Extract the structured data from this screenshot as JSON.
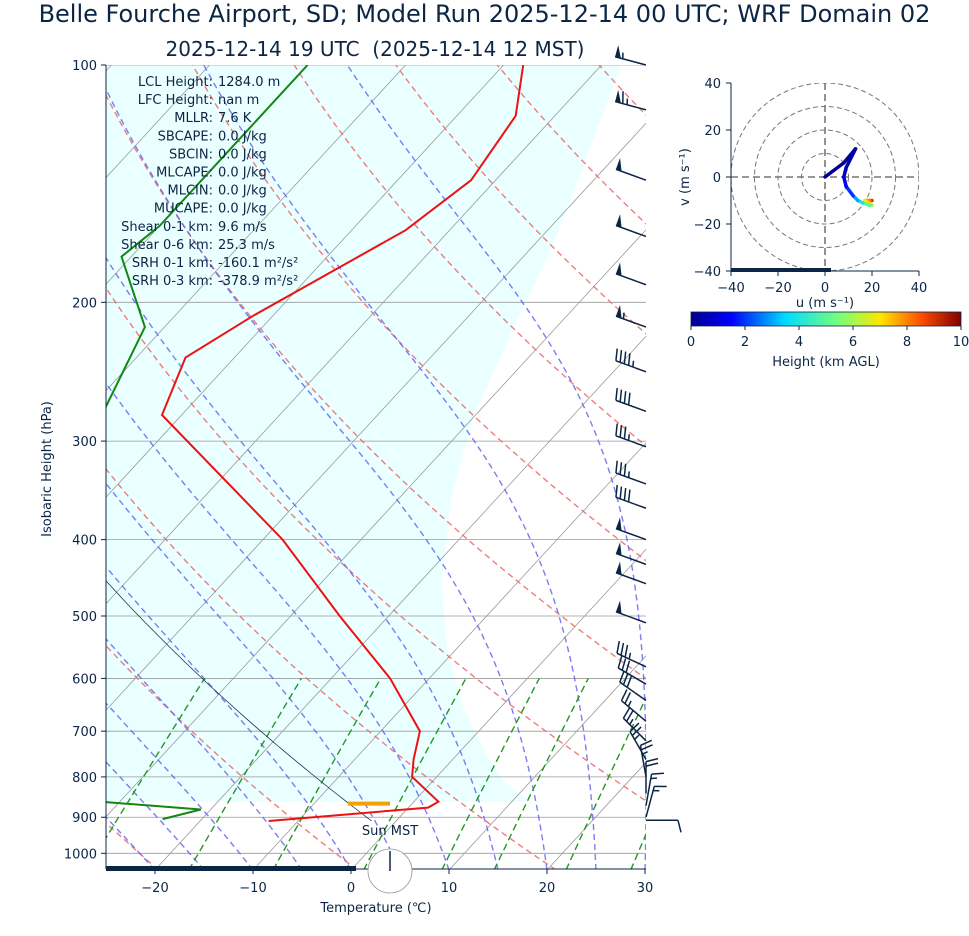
{
  "title": "Belle Fourche Airport, SD; Model Run 2025-12-14 00 UTC; WRF Domain 02",
  "subtitle": "2025-12-14 19 UTC  (2025-12-14 12 MST)",
  "clock_label": "Sun MST",
  "indices": [
    {
      "label": "LCL Height:",
      "value": "1284.0 m"
    },
    {
      "label": "LFC Height:",
      "value": "nan m"
    },
    {
      "label": "MLLR:",
      "value": "7.6 K"
    },
    {
      "label": "SBCAPE:",
      "value": "0.0 J/kg"
    },
    {
      "label": "SBCIN:",
      "value": "0.0 J/kg"
    },
    {
      "label": "MLCAPE:",
      "value": "0.0 J/kg"
    },
    {
      "label": "MLCIN:",
      "value": "0.0 J/kg"
    },
    {
      "label": "MUCAPE:",
      "value": "0.0 J/kg"
    },
    {
      "label": "Shear 0-1 km:",
      "value": "9.6 m/s"
    },
    {
      "label": "Shear 0-6 km:",
      "value": "25.3 m/s"
    },
    {
      "label": "SRH 0-1 km:",
      "value": "-160.1 m²/s²"
    },
    {
      "label": "SRH 0-3 km:",
      "value": "-378.9 m²/s²"
    }
  ],
  "colors": {
    "temperature": "#ee1111",
    "dewpoint": "#118811",
    "dry_adiabat": "#ee6666",
    "moist_adiabat": "#6666ee",
    "mixing_ratio": "#229922",
    "cloud_shade": "#eaffff",
    "text": "#0b2545",
    "lcl_marker": "#f4a000"
  },
  "chart_data": [
    {
      "type": "line",
      "name": "skew-T log-p sounding",
      "xlabel": "Temperature (℃)",
      "ylabel": "Isobaric Height (hPa)",
      "xlim": [
        -25,
        30
      ],
      "ylim": [
        1050,
        100
      ],
      "y_scale": "log",
      "xticks": [
        -20,
        -10,
        0,
        10,
        20,
        30
      ],
      "yticks": [
        100,
        200,
        300,
        400,
        500,
        600,
        700,
        800,
        900,
        1000
      ],
      "grid": true,
      "lcl_pressure_hpa": 865,
      "series": [
        {
          "key": "temperature",
          "points": [
            [
              100,
              -58
            ],
            [
              116,
              -54
            ],
            [
              140,
              -52.5
            ],
            [
              162,
              -54.5
            ],
            [
              208,
              -62
            ],
            [
              235,
              -65
            ],
            [
              278,
              -62
            ],
            [
              400,
              -38
            ],
            [
              500,
              -25
            ],
            [
              600,
              -14
            ],
            [
              700,
              -6
            ],
            [
              760,
              -4
            ],
            [
              800,
              -2.5
            ],
            [
              860,
              2.5
            ],
            [
              875,
              2
            ],
            [
              910,
              -13
            ]
          ]
        },
        {
          "key": "dewpoint",
          "points": [
            [
              100,
              -80
            ],
            [
              160,
              -80
            ],
            [
              175,
              -81
            ],
            [
              215,
              -72
            ],
            [
              300,
              -67
            ],
            [
              350,
              -66
            ],
            [
              430,
              -57
            ],
            [
              470,
              -53
            ],
            [
              600,
              -48
            ],
            [
              700,
              -44
            ],
            [
              770,
              -38
            ],
            [
              800,
              -35
            ],
            [
              860,
              -32
            ],
            [
              880,
              -21
            ],
            [
              905,
              -24
            ]
          ]
        }
      ],
      "wind_barbs": [
        {
          "p": 100,
          "speed_kt": 55,
          "dir_deg": 285
        },
        {
          "p": 114,
          "speed_kt": 65,
          "dir_deg": 285
        },
        {
          "p": 140,
          "speed_kt": 50,
          "dir_deg": 290
        },
        {
          "p": 165,
          "speed_kt": 50,
          "dir_deg": 290
        },
        {
          "p": 190,
          "speed_kt": 50,
          "dir_deg": 290
        },
        {
          "p": 215,
          "speed_kt": 55,
          "dir_deg": 290
        },
        {
          "p": 245,
          "speed_kt": 45,
          "dir_deg": 290
        },
        {
          "p": 275,
          "speed_kt": 40,
          "dir_deg": 290
        },
        {
          "p": 305,
          "speed_kt": 35,
          "dir_deg": 290
        },
        {
          "p": 340,
          "speed_kt": 35,
          "dir_deg": 290
        },
        {
          "p": 365,
          "speed_kt": 40,
          "dir_deg": 290
        },
        {
          "p": 400,
          "speed_kt": 50,
          "dir_deg": 290
        },
        {
          "p": 430,
          "speed_kt": 50,
          "dir_deg": 290
        },
        {
          "p": 455,
          "speed_kt": 50,
          "dir_deg": 290
        },
        {
          "p": 510,
          "speed_kt": 50,
          "dir_deg": 290
        },
        {
          "p": 580,
          "speed_kt": 35,
          "dir_deg": 295
        },
        {
          "p": 610,
          "speed_kt": 30,
          "dir_deg": 300
        },
        {
          "p": 640,
          "speed_kt": 30,
          "dir_deg": 305
        },
        {
          "p": 680,
          "speed_kt": 25,
          "dir_deg": 310
        },
        {
          "p": 720,
          "speed_kt": 25,
          "dir_deg": 315
        },
        {
          "p": 760,
          "speed_kt": 25,
          "dir_deg": 330
        },
        {
          "p": 800,
          "speed_kt": 25,
          "dir_deg": 350
        },
        {
          "p": 840,
          "speed_kt": 20,
          "dir_deg": 0
        },
        {
          "p": 870,
          "speed_kt": 15,
          "dir_deg": 10
        },
        {
          "p": 900,
          "speed_kt": 15,
          "dir_deg": 15
        },
        {
          "p": 908,
          "speed_kt": 10,
          "dir_deg": 90
        }
      ]
    },
    {
      "type": "line",
      "name": "hodograph",
      "xlabel": "u (m s$^{-1}$)",
      "xlabel_unit_display": "u (m s⁻¹)",
      "ylabel_display": "v (m s⁻¹)",
      "xlim": [
        -40,
        40
      ],
      "ylim": [
        -40,
        40
      ],
      "ticks": [
        -40,
        -20,
        0,
        20,
        40
      ],
      "rings": [
        10,
        20,
        30,
        40
      ],
      "points": [
        {
          "u": 20,
          "v": -10,
          "h": 9.5
        },
        {
          "u": 19,
          "v": -10,
          "h": 8.5
        },
        {
          "u": 17,
          "v": -10,
          "h": 7.5
        },
        {
          "u": 20,
          "v": -12,
          "h": 6.5
        },
        {
          "u": 19,
          "v": -12,
          "h": 5.5
        },
        {
          "u": 16,
          "v": -11,
          "h": 4.5
        },
        {
          "u": 14,
          "v": -10,
          "h": 3.5
        },
        {
          "u": 12,
          "v": -8,
          "h": 2.5
        },
        {
          "u": 9,
          "v": -4,
          "h": 1.5
        },
        {
          "u": 8,
          "v": 0,
          "h": 1.0
        },
        {
          "u": 9,
          "v": 4,
          "h": 0.6
        },
        {
          "u": 13,
          "v": 12,
          "h": 0.3
        },
        {
          "u": 8,
          "v": 6,
          "h": 0.2
        },
        {
          "u": 0,
          "v": 0,
          "h": 0.0
        }
      ]
    },
    {
      "type": "heatmap",
      "name": "colorbar",
      "label": "Height (km AGL)",
      "range": [
        0,
        10
      ],
      "ticks": [
        0,
        2,
        4,
        6,
        8,
        10
      ]
    }
  ]
}
